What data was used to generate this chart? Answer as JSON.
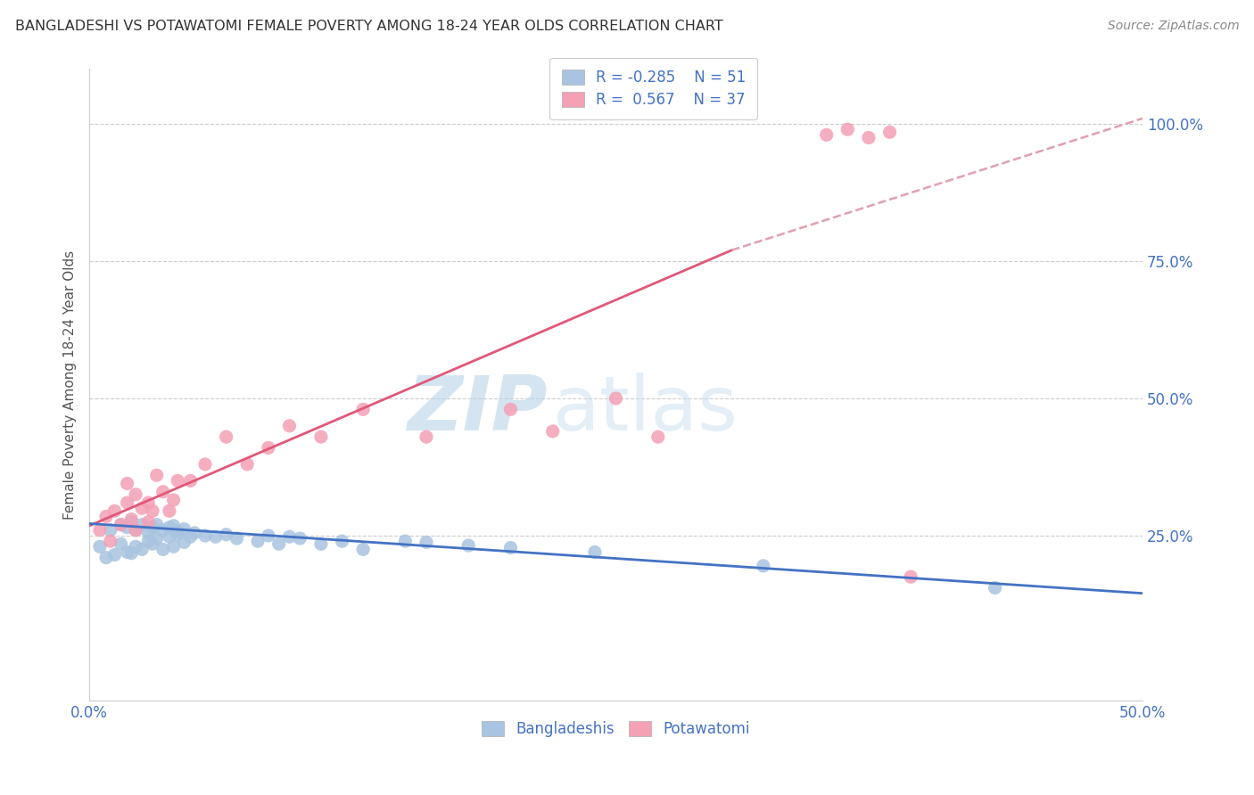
{
  "title": "BANGLADESHI VS POTAWATOMI FEMALE POVERTY AMONG 18-24 YEAR OLDS CORRELATION CHART",
  "source": "Source: ZipAtlas.com",
  "ylabel": "Female Poverty Among 18-24 Year Olds",
  "yticks": [
    0.0,
    0.25,
    0.5,
    0.75,
    1.0
  ],
  "ytick_labels": [
    "",
    "25.0%",
    "50.0%",
    "75.0%",
    "100.0%"
  ],
  "xlim": [
    0.0,
    0.5
  ],
  "ylim": [
    -0.05,
    1.1
  ],
  "r_bangladeshi": -0.285,
  "n_bangladeshi": 51,
  "r_potawatomi": 0.567,
  "n_potawatomi": 37,
  "color_bangladeshi": "#a8c4e0",
  "color_potawatomi": "#f4a0b5",
  "color_blue_line": "#4472c4",
  "color_pink_line": "#e05878",
  "color_dashed_line": "#e0a0b0",
  "watermark_zip": "ZIP",
  "watermark_atlas": "atlas",
  "bangladeshi_x": [
    0.005,
    0.008,
    0.01,
    0.012,
    0.015,
    0.015,
    0.018,
    0.018,
    0.02,
    0.02,
    0.022,
    0.022,
    0.025,
    0.025,
    0.028,
    0.028,
    0.03,
    0.03,
    0.032,
    0.032,
    0.035,
    0.035,
    0.038,
    0.038,
    0.04,
    0.04,
    0.042,
    0.042,
    0.045,
    0.045,
    0.048,
    0.05,
    0.055,
    0.06,
    0.065,
    0.07,
    0.08,
    0.085,
    0.09,
    0.095,
    0.1,
    0.11,
    0.12,
    0.13,
    0.15,
    0.16,
    0.18,
    0.2,
    0.24,
    0.32,
    0.43
  ],
  "bangladeshi_y": [
    0.23,
    0.21,
    0.26,
    0.215,
    0.235,
    0.27,
    0.22,
    0.265,
    0.218,
    0.275,
    0.23,
    0.26,
    0.225,
    0.27,
    0.24,
    0.255,
    0.235,
    0.265,
    0.245,
    0.27,
    0.225,
    0.26,
    0.248,
    0.265,
    0.23,
    0.268,
    0.252,
    0.258,
    0.238,
    0.262,
    0.248,
    0.255,
    0.25,
    0.248,
    0.252,
    0.245,
    0.24,
    0.25,
    0.235,
    0.248,
    0.245,
    0.235,
    0.24,
    0.225,
    0.24,
    0.238,
    0.232,
    0.228,
    0.22,
    0.195,
    0.155
  ],
  "potawatomi_x": [
    0.005,
    0.008,
    0.01,
    0.012,
    0.015,
    0.018,
    0.018,
    0.02,
    0.022,
    0.022,
    0.025,
    0.028,
    0.028,
    0.03,
    0.032,
    0.035,
    0.038,
    0.04,
    0.042,
    0.048,
    0.055,
    0.065,
    0.075,
    0.085,
    0.095,
    0.11,
    0.13,
    0.16,
    0.2,
    0.22,
    0.25,
    0.27,
    0.35,
    0.36,
    0.37,
    0.38,
    0.39
  ],
  "potawatomi_y": [
    0.26,
    0.285,
    0.24,
    0.295,
    0.27,
    0.31,
    0.345,
    0.28,
    0.325,
    0.26,
    0.3,
    0.275,
    0.31,
    0.295,
    0.36,
    0.33,
    0.295,
    0.315,
    0.35,
    0.35,
    0.38,
    0.43,
    0.38,
    0.41,
    0.45,
    0.43,
    0.48,
    0.43,
    0.48,
    0.44,
    0.5,
    0.43,
    0.98,
    0.99,
    0.975,
    0.985,
    0.175
  ],
  "blue_trend_x": [
    0.0,
    0.5
  ],
  "blue_trend_y": [
    0.272,
    0.145
  ],
  "pink_trend_x": [
    0.0,
    0.305
  ],
  "pink_trend_y": [
    0.268,
    0.77
  ],
  "dashed_line_x": [
    0.305,
    0.5
  ],
  "dashed_line_y": [
    0.77,
    1.01
  ]
}
